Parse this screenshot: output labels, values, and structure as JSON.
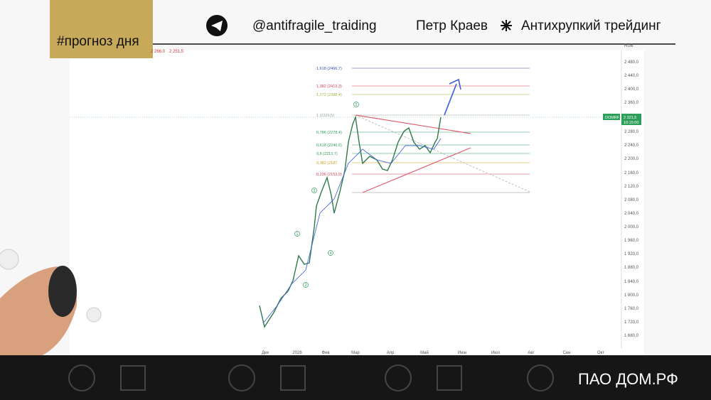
{
  "header": {
    "tag": "#прогноз дня",
    "channel": "@antifragile_traiding",
    "author": "Петр Краев",
    "brand": "Антихрупкий трейдинг"
  },
  "chart": {
    "legend": [
      "2 266,0",
      "2 251,5"
    ],
    "yticks": [
      "2 480,0",
      "2 440,0",
      "2 400,0",
      "2 360,0",
      "2 280,0",
      "2 240,0",
      "2 200,0",
      "2 160,0",
      "2 120,0",
      "2 080,0",
      "2 040,0",
      "2 000,0",
      "1 960,0",
      "1 920,0",
      "1 880,0",
      "1 840,0",
      "1 800,0",
      "1 760,0",
      "1 720,0",
      "1 680,0"
    ],
    "currency": "RUB",
    "xticks": [
      "Дек",
      "2026",
      "Фев",
      "Мар",
      "Апр",
      "Май",
      "Июн",
      "Июл",
      "Авг",
      "Сен",
      "Окт"
    ],
    "fib": [
      "1,618 (2466,7)",
      "1,382 (2413,3)",
      "1,272 (2388,4)",
      "1 (2326,5)",
      "0,786 (2278,4)",
      "0,618 (2240,6)",
      "0,5 (2213,7)",
      "0,382 (2187",
      "0,236 (2153,9)"
    ],
    "ticker": "DOMRF",
    "price": "2 321,5",
    "time": "10:15:00",
    "waves": [
      "1",
      "2",
      "3",
      "4",
      "5"
    ]
  },
  "footer": {
    "company": "ПАО ДОМ.РФ"
  }
}
